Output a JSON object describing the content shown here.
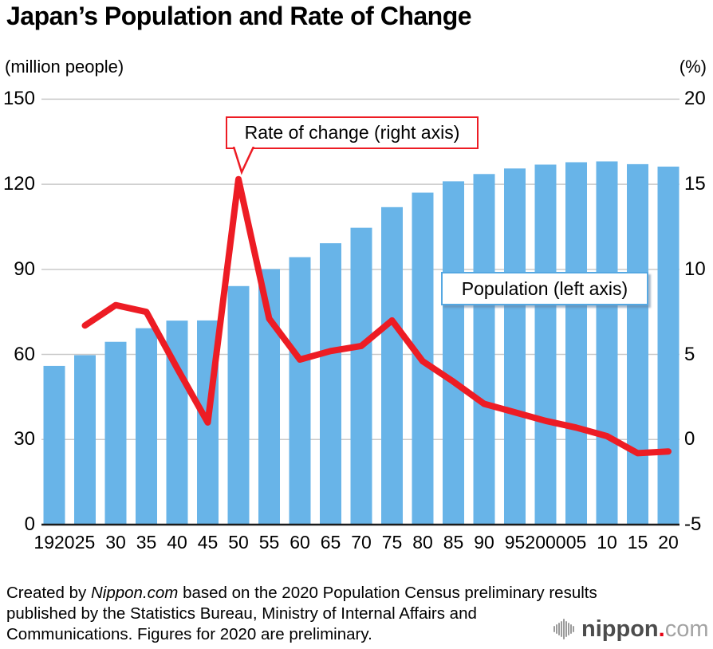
{
  "title": "Japan’s Population and Rate of Change",
  "left_axis": {
    "unit": "(million people)",
    "ticks": [
      0,
      30,
      60,
      90,
      120,
      150
    ],
    "range": [
      0,
      150
    ]
  },
  "right_axis": {
    "unit": "(%)",
    "ticks": [
      -5,
      0,
      5,
      10,
      15,
      20
    ],
    "range": [
      -5,
      20
    ]
  },
  "annotations": {
    "rate_label": "Rate of change (right axis)",
    "population_label": "Population (left axis)"
  },
  "chart_data": {
    "type": "bar",
    "subtype": "bar+line combo, dual axis",
    "title": "Japan’s Population and Rate of Change",
    "categories": [
      "1920",
      "25",
      "30",
      "35",
      "40",
      "45",
      "50",
      "55",
      "60",
      "65",
      "70",
      "75",
      "80",
      "85",
      "90",
      "95",
      "2000",
      "05",
      "10",
      "15",
      "20"
    ],
    "series": [
      {
        "name": "Population (left axis)",
        "type": "bar",
        "axis": "left",
        "unit": "million people",
        "color": "#68b4e8",
        "values": [
          55.96,
          59.74,
          64.45,
          69.25,
          71.93,
          71.99,
          84.11,
          90.08,
          94.3,
          99.21,
          104.67,
          111.94,
          117.06,
          121.05,
          123.61,
          125.57,
          126.93,
          127.77,
          128.06,
          127.09,
          126.23
        ]
      },
      {
        "name": "Rate of change (right axis)",
        "type": "line",
        "axis": "right",
        "unit": "%",
        "color": "#ed1c24",
        "values": [
          null,
          6.7,
          7.9,
          7.5,
          4.2,
          1.0,
          15.3,
          7.1,
          4.7,
          5.2,
          5.5,
          7.0,
          4.6,
          3.4,
          2.1,
          1.6,
          1.1,
          0.7,
          0.2,
          -0.8,
          -0.7
        ]
      }
    ],
    "ylabel_left": "(million people)",
    "ylabel_right": "(%)",
    "ylim_left": [
      0,
      150
    ],
    "ylim_right": [
      -5,
      20
    ],
    "grid": "horizontal gridlines at every left-axis tick, light gray, behind bars"
  },
  "footer": {
    "line1_prefix": "Created by ",
    "line1_italic": "Nippon.com",
    "line1_suffix": " based on the 2020 Population Census preliminary results",
    "line2": "published by the Statistics Bureau, Ministry of Internal Affairs and",
    "line3": "Communications. Figures for 2020 are preliminary."
  },
  "logo": {
    "name": "nippon",
    "dot": ".",
    "tld": "com"
  },
  "colors": {
    "bar_blue": "#68b4e8",
    "line_red": "#ed1c24",
    "population_box_border": "#55a8e2",
    "gridline": "#c9c9c9",
    "baseline": "#1a1a1a",
    "logo_red": "#e60012",
    "logo_gray_dark": "#4c4c4c",
    "logo_gray_light": "#a3a3a3"
  }
}
